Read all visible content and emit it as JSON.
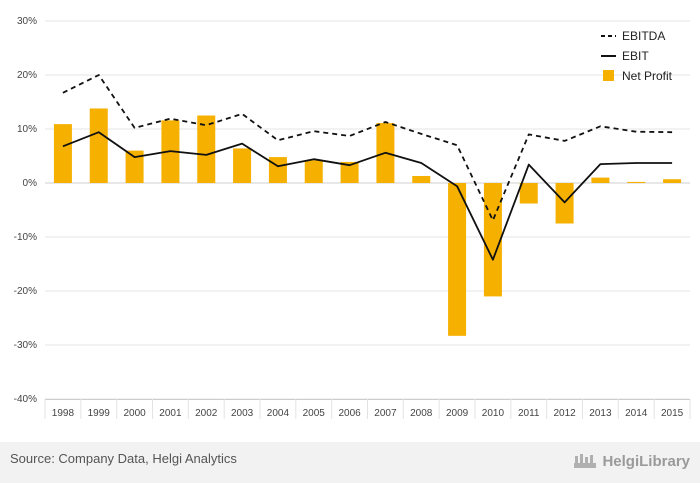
{
  "chart_data": {
    "type": "bar",
    "title": "",
    "xlabel": "",
    "ylabel": "",
    "categories": [
      "1998",
      "1999",
      "2000",
      "2001",
      "2002",
      "2003",
      "2004",
      "2005",
      "2006",
      "2007",
      "2008",
      "2009",
      "2010",
      "2011",
      "2012",
      "2013",
      "2014",
      "2015"
    ],
    "ylim": [
      -40,
      30
    ],
    "yticks": [
      30,
      20,
      10,
      0,
      -10,
      -20,
      -30,
      -40
    ],
    "ytick_labels": [
      "30%",
      "20%",
      "10%",
      "0%",
      "-10%",
      "-20%",
      "-30%",
      "-40%"
    ],
    "series": [
      {
        "name": "Net Profit",
        "kind": "bar",
        "color": "#f5b000",
        "values": [
          10.9,
          13.8,
          6.0,
          11.6,
          12.5,
          6.4,
          4.8,
          4.2,
          3.9,
          11.1,
          1.3,
          -28.3,
          -21.0,
          -3.8,
          -7.5,
          1.0,
          0.2,
          0.7
        ]
      },
      {
        "name": "EBITDA",
        "kind": "line-dashed",
        "color": "#111111",
        "values": [
          16.7,
          20.0,
          10.2,
          11.9,
          10.7,
          12.8,
          7.9,
          9.6,
          8.7,
          11.3,
          9.1,
          7.0,
          -6.9,
          9.0,
          7.8,
          10.5,
          9.5,
          9.4
        ]
      },
      {
        "name": "EBIT",
        "kind": "line",
        "color": "#111111",
        "values": [
          6.8,
          9.4,
          4.8,
          5.9,
          5.2,
          7.3,
          3.1,
          4.4,
          3.3,
          5.6,
          3.7,
          -0.6,
          -14.2,
          3.4,
          -3.6,
          3.5,
          3.7,
          3.7
        ]
      }
    ],
    "legend": {
      "position": "top-right",
      "entries": [
        "EBITDA",
        "EBIT",
        "Net Profit"
      ]
    },
    "grid": true
  },
  "footer": {
    "source": "Source: Company Data, Helgi Analytics",
    "brand_name": "HelgiLibrary"
  }
}
